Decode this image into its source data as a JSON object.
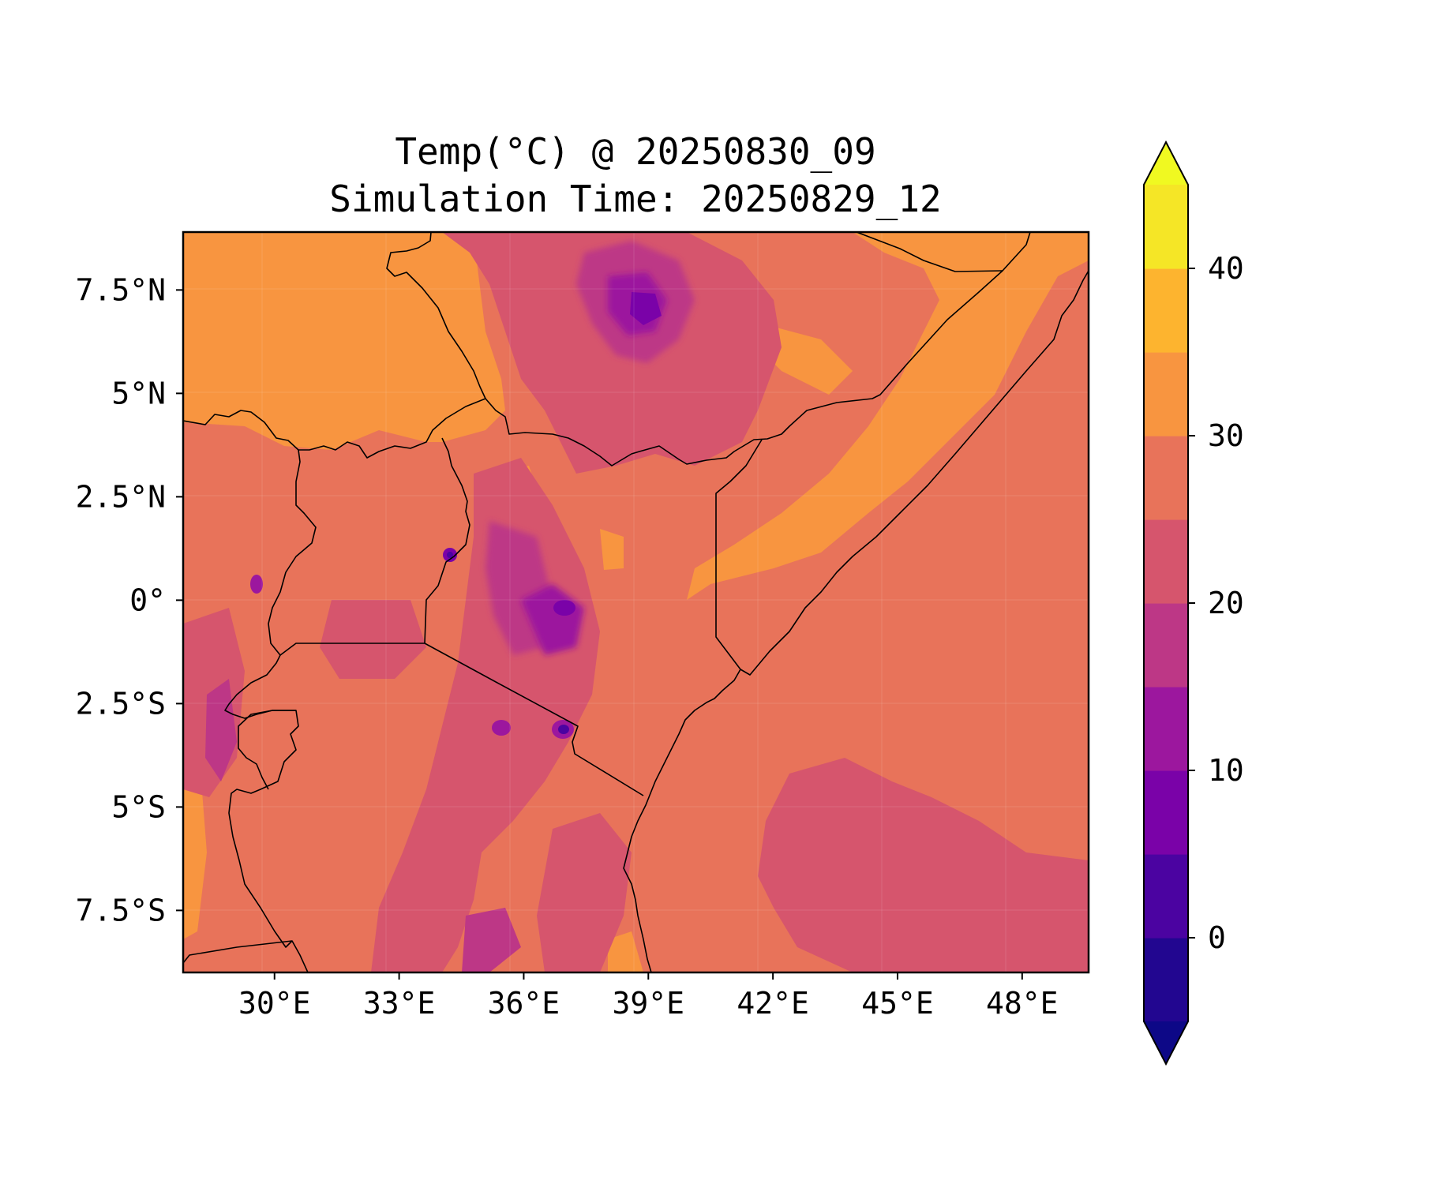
{
  "title": {
    "line1": "Temp(°C) @ 20250830_09",
    "line2": "Simulation Time: 20250829_12"
  },
  "map": {
    "lon_range": [
      27.8,
      49.6
    ],
    "lat_range": [
      -9.0,
      8.9
    ],
    "lon_ticks": [
      {
        "value": 30,
        "label": "30°E"
      },
      {
        "value": 33,
        "label": "33°E"
      },
      {
        "value": 36,
        "label": "36°E"
      },
      {
        "value": 39,
        "label": "39°E"
      },
      {
        "value": 42,
        "label": "42°E"
      },
      {
        "value": 45,
        "label": "45°E"
      },
      {
        "value": 48,
        "label": "48°E"
      }
    ],
    "lat_ticks": [
      {
        "value": 7.5,
        "label": "7.5°N"
      },
      {
        "value": 5,
        "label": "5°N"
      },
      {
        "value": 2.5,
        "label": "2.5°N"
      },
      {
        "value": 0,
        "label": "0°"
      },
      {
        "value": -2.5,
        "label": "2.5°S"
      },
      {
        "value": -5,
        "label": "5°S"
      },
      {
        "value": -7.5,
        "label": "7.5°S"
      }
    ],
    "field": "temperature",
    "units": "°C",
    "dominant_level_color": "#e8735a",
    "has_country_borders": true,
    "has_coastline": true
  },
  "colorbar": {
    "levels": [
      -5,
      0,
      5,
      10,
      15,
      20,
      25,
      30,
      35,
      40,
      45
    ],
    "colors": [
      "#220690",
      "#4b03a1",
      "#7a02a8",
      "#9c179e",
      "#bd3786",
      "#d6556d",
      "#e8735a",
      "#f89540",
      "#fdb42f",
      "#f5e626"
    ],
    "under_color": "#0d0887",
    "over_color": "#f0f921",
    "extend": "both",
    "tick_values": [
      0,
      10,
      20,
      30,
      40
    ],
    "tick_labels": [
      "0",
      "10",
      "20",
      "30",
      "40"
    ]
  }
}
